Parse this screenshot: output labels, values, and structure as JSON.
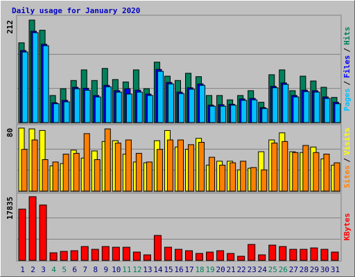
{
  "chart_data": [
    {
      "type": "bar",
      "title": "Daily usage for January 2020",
      "ylim": [
        0,
        212
      ],
      "yticks": [
        212
      ],
      "grid": true,
      "legend_separator": "/",
      "series": [
        {
          "name": "Hits",
          "color": "#00805C",
          "values": [
            165,
            212,
            191,
            56,
            70,
            87,
            109,
            87,
            112,
            89,
            84,
            109,
            70,
            125,
            96,
            87,
            102,
            95,
            56,
            56,
            47,
            56,
            66,
            42,
            99,
            109,
            66,
            96,
            86,
            73,
            52
          ]
        },
        {
          "name": "Files",
          "color": "#0000FF",
          "values": [
            149,
            189,
            162,
            41,
            46,
            73,
            71,
            56,
            77,
            66,
            70,
            67,
            59,
            110,
            83,
            63,
            72,
            80,
            36,
            37,
            38,
            49,
            50,
            31,
            75,
            82,
            56,
            67,
            66,
            53,
            42
          ]
        },
        {
          "name": "Pages",
          "color": "#00C0FF",
          "values": [
            146,
            186,
            159,
            39,
            43,
            70,
            67,
            53,
            74,
            63,
            59,
            63,
            56,
            106,
            80,
            60,
            69,
            77,
            34,
            34,
            36,
            46,
            47,
            29,
            72,
            79,
            53,
            64,
            63,
            50,
            39
          ]
        }
      ]
    },
    {
      "type": "bar",
      "ylim": [
        0,
        80
      ],
      "yticks": [
        80
      ],
      "grid": true,
      "legend_separator": "/",
      "series": [
        {
          "name": "Visits",
          "color": "#FFFF00",
          "values": [
            80,
            79,
            77,
            32,
            35,
            52,
            42,
            51,
            63,
            64,
            47,
            37,
            36,
            64,
            77,
            56,
            53,
            67,
            33,
            38,
            38,
            27,
            29,
            50,
            65,
            74,
            50,
            49,
            56,
            41,
            33
          ]
        },
        {
          "name": "Sites",
          "color": "#FF8000",
          "values": [
            53,
            65,
            40,
            37,
            47,
            48,
            73,
            40,
            79,
            61,
            65,
            48,
            37,
            53,
            65,
            65,
            59,
            62,
            43,
            33,
            36,
            38,
            30,
            27,
            61,
            63,
            49,
            58,
            49,
            47,
            36
          ]
        }
      ]
    },
    {
      "type": "bar",
      "ylim": [
        0,
        17835
      ],
      "yticks": [
        17835
      ],
      "grid": true,
      "categories": [
        "1",
        "2",
        "3",
        "4",
        "5",
        "6",
        "7",
        "8",
        "9",
        "10",
        "11",
        "12",
        "13",
        "14",
        "15",
        "16",
        "17",
        "18",
        "19",
        "20",
        "21",
        "22",
        "23",
        "24",
        "25",
        "26",
        "27",
        "28",
        "29",
        "30",
        "31"
      ],
      "category_colors": [
        "#000080",
        "#000080",
        "#000080",
        "#00805C",
        "#00805C",
        "#000080",
        "#000080",
        "#000080",
        "#000080",
        "#000080",
        "#00805C",
        "#00805C",
        "#000080",
        "#000080",
        "#000080",
        "#000080",
        "#000080",
        "#00805C",
        "#00805C",
        "#000080",
        "#000080",
        "#000080",
        "#000080",
        "#000080",
        "#00805C",
        "#00805C",
        "#000080",
        "#000080",
        "#000080",
        "#000080",
        "#000080"
      ],
      "series": [
        {
          "name": "KBytes",
          "color": "#FF0000",
          "values": [
            14350,
            17835,
            15510,
            2130,
            2520,
            2710,
            3880,
            3100,
            3880,
            3680,
            3680,
            2330,
            1550,
            6980,
            3680,
            3100,
            2710,
            1940,
            2330,
            2710,
            1940,
            1160,
            4460,
            1550,
            4270,
            3880,
            3100,
            3100,
            3490,
            3100,
            2330
          ]
        }
      ]
    }
  ]
}
